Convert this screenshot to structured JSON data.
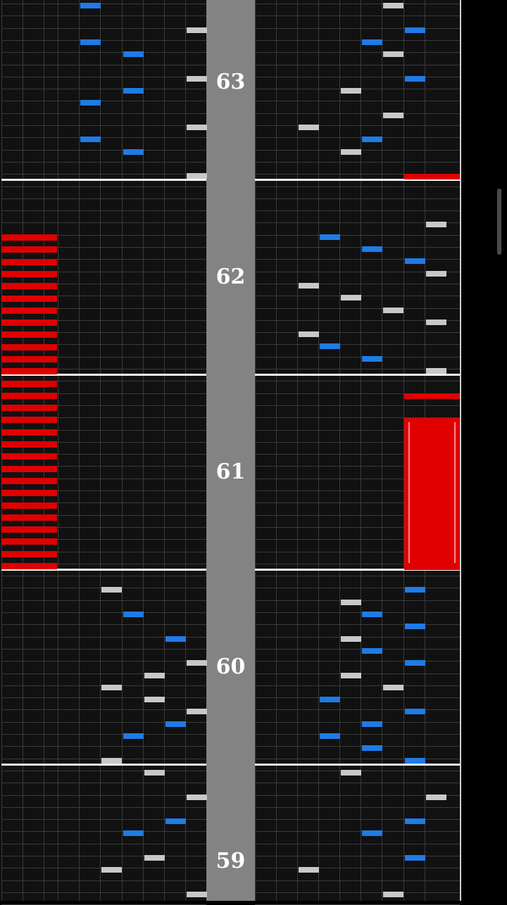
{
  "colors": {
    "blue_note": "#1f7be6",
    "white_note": "#c8c8c8",
    "red_note": "#e00000",
    "center_bar": "#838383"
  },
  "measures": [
    {
      "number": "63"
    },
    {
      "number": "62"
    },
    {
      "number": "61"
    },
    {
      "number": "60"
    },
    {
      "number": "59"
    }
  ],
  "notes": [
    {
      "lane": 3,
      "row": 0,
      "c": "b"
    },
    {
      "lane": 15,
      "row": 0,
      "c": "w"
    },
    {
      "lane": 8,
      "row": 2,
      "c": "w"
    },
    {
      "lane": 16,
      "row": 2,
      "c": "b"
    },
    {
      "lane": 3,
      "row": 3,
      "c": "b"
    },
    {
      "lane": 14,
      "row": 3,
      "c": "b"
    },
    {
      "lane": 5,
      "row": 4,
      "c": "b"
    },
    {
      "lane": 15,
      "row": 4,
      "c": "w"
    },
    {
      "lane": 8,
      "row": 6,
      "c": "w"
    },
    {
      "lane": 16,
      "row": 6,
      "c": "b"
    },
    {
      "lane": 5,
      "row": 7,
      "c": "b"
    },
    {
      "lane": 13,
      "row": 7,
      "c": "w"
    },
    {
      "lane": 3,
      "row": 8,
      "c": "b"
    },
    {
      "lane": 15,
      "row": 9,
      "c": "w"
    },
    {
      "lane": 8,
      "row": 10,
      "c": "w"
    },
    {
      "lane": 11,
      "row": 10,
      "c": "w"
    },
    {
      "lane": 3,
      "row": 11,
      "c": "b"
    },
    {
      "lane": 14,
      "row": 11,
      "c": "b"
    },
    {
      "lane": 5,
      "row": 12,
      "c": "b"
    },
    {
      "lane": 13,
      "row": 12,
      "c": "w"
    },
    {
      "lane": 8,
      "row": 14,
      "c": "w"
    },
    {
      "lane": 17,
      "row": 18,
      "c": "w"
    },
    {
      "lane": 12,
      "row": 19,
      "c": "b"
    },
    {
      "lane": 14,
      "row": 20,
      "c": "b"
    },
    {
      "lane": 16,
      "row": 21,
      "c": "b"
    },
    {
      "lane": 17,
      "row": 22,
      "c": "w"
    },
    {
      "lane": 11,
      "row": 23,
      "c": "w"
    },
    {
      "lane": 13,
      "row": 24,
      "c": "w"
    },
    {
      "lane": 15,
      "row": 25,
      "c": "w"
    },
    {
      "lane": 17,
      "row": 26,
      "c": "w"
    },
    {
      "lane": 11,
      "row": 27,
      "c": "w"
    },
    {
      "lane": 12,
      "row": 28,
      "c": "b"
    },
    {
      "lane": 14,
      "row": 29,
      "c": "b"
    },
    {
      "lane": 17,
      "row": 30,
      "c": "w"
    },
    {
      "lane": 4,
      "row": 48,
      "c": "w"
    },
    {
      "lane": 16,
      "row": 48,
      "c": "b"
    },
    {
      "lane": 13,
      "row": 49,
      "c": "w"
    },
    {
      "lane": 5,
      "row": 50,
      "c": "b"
    },
    {
      "lane": 14,
      "row": 50,
      "c": "b"
    },
    {
      "lane": 16,
      "row": 51,
      "c": "b"
    },
    {
      "lane": 7,
      "row": 52,
      "c": "b"
    },
    {
      "lane": 13,
      "row": 52,
      "c": "w"
    },
    {
      "lane": 14,
      "row": 53,
      "c": "b"
    },
    {
      "lane": 8,
      "row": 54,
      "c": "w"
    },
    {
      "lane": 16,
      "row": 54,
      "c": "b"
    },
    {
      "lane": 6,
      "row": 55,
      "c": "w"
    },
    {
      "lane": 13,
      "row": 55,
      "c": "w"
    },
    {
      "lane": 4,
      "row": 56,
      "c": "w"
    },
    {
      "lane": 15,
      "row": 56,
      "c": "w"
    },
    {
      "lane": 6,
      "row": 57,
      "c": "w"
    },
    {
      "lane": 12,
      "row": 57,
      "c": "b"
    },
    {
      "lane": 8,
      "row": 58,
      "c": "w"
    },
    {
      "lane": 16,
      "row": 58,
      "c": "b"
    },
    {
      "lane": 7,
      "row": 59,
      "c": "b"
    },
    {
      "lane": 14,
      "row": 59,
      "c": "b"
    },
    {
      "lane": 5,
      "row": 60,
      "c": "b"
    },
    {
      "lane": 12,
      "row": 60,
      "c": "b"
    },
    {
      "lane": 14,
      "row": 61,
      "c": "b"
    },
    {
      "lane": 4,
      "row": 62,
      "c": "w"
    },
    {
      "lane": 16,
      "row": 62,
      "c": "b"
    },
    {
      "lane": 6,
      "row": 63,
      "c": "w"
    },
    {
      "lane": 13,
      "row": 63,
      "c": "w"
    },
    {
      "lane": 8,
      "row": 65,
      "c": "w"
    },
    {
      "lane": 17,
      "row": 65,
      "c": "w"
    },
    {
      "lane": 7,
      "row": 67,
      "c": "b"
    },
    {
      "lane": 16,
      "row": 67,
      "c": "b"
    },
    {
      "lane": 5,
      "row": 68,
      "c": "b"
    },
    {
      "lane": 14,
      "row": 68,
      "c": "b"
    },
    {
      "lane": 6,
      "row": 70,
      "c": "w"
    },
    {
      "lane": 16,
      "row": 70,
      "c": "b"
    },
    {
      "lane": 4,
      "row": 71,
      "c": "w"
    },
    {
      "lane": 11,
      "row": 71,
      "c": "w"
    },
    {
      "lane": 8,
      "row": 73,
      "c": "w"
    },
    {
      "lane": 15,
      "row": 73,
      "c": "w"
    }
  ]
}
